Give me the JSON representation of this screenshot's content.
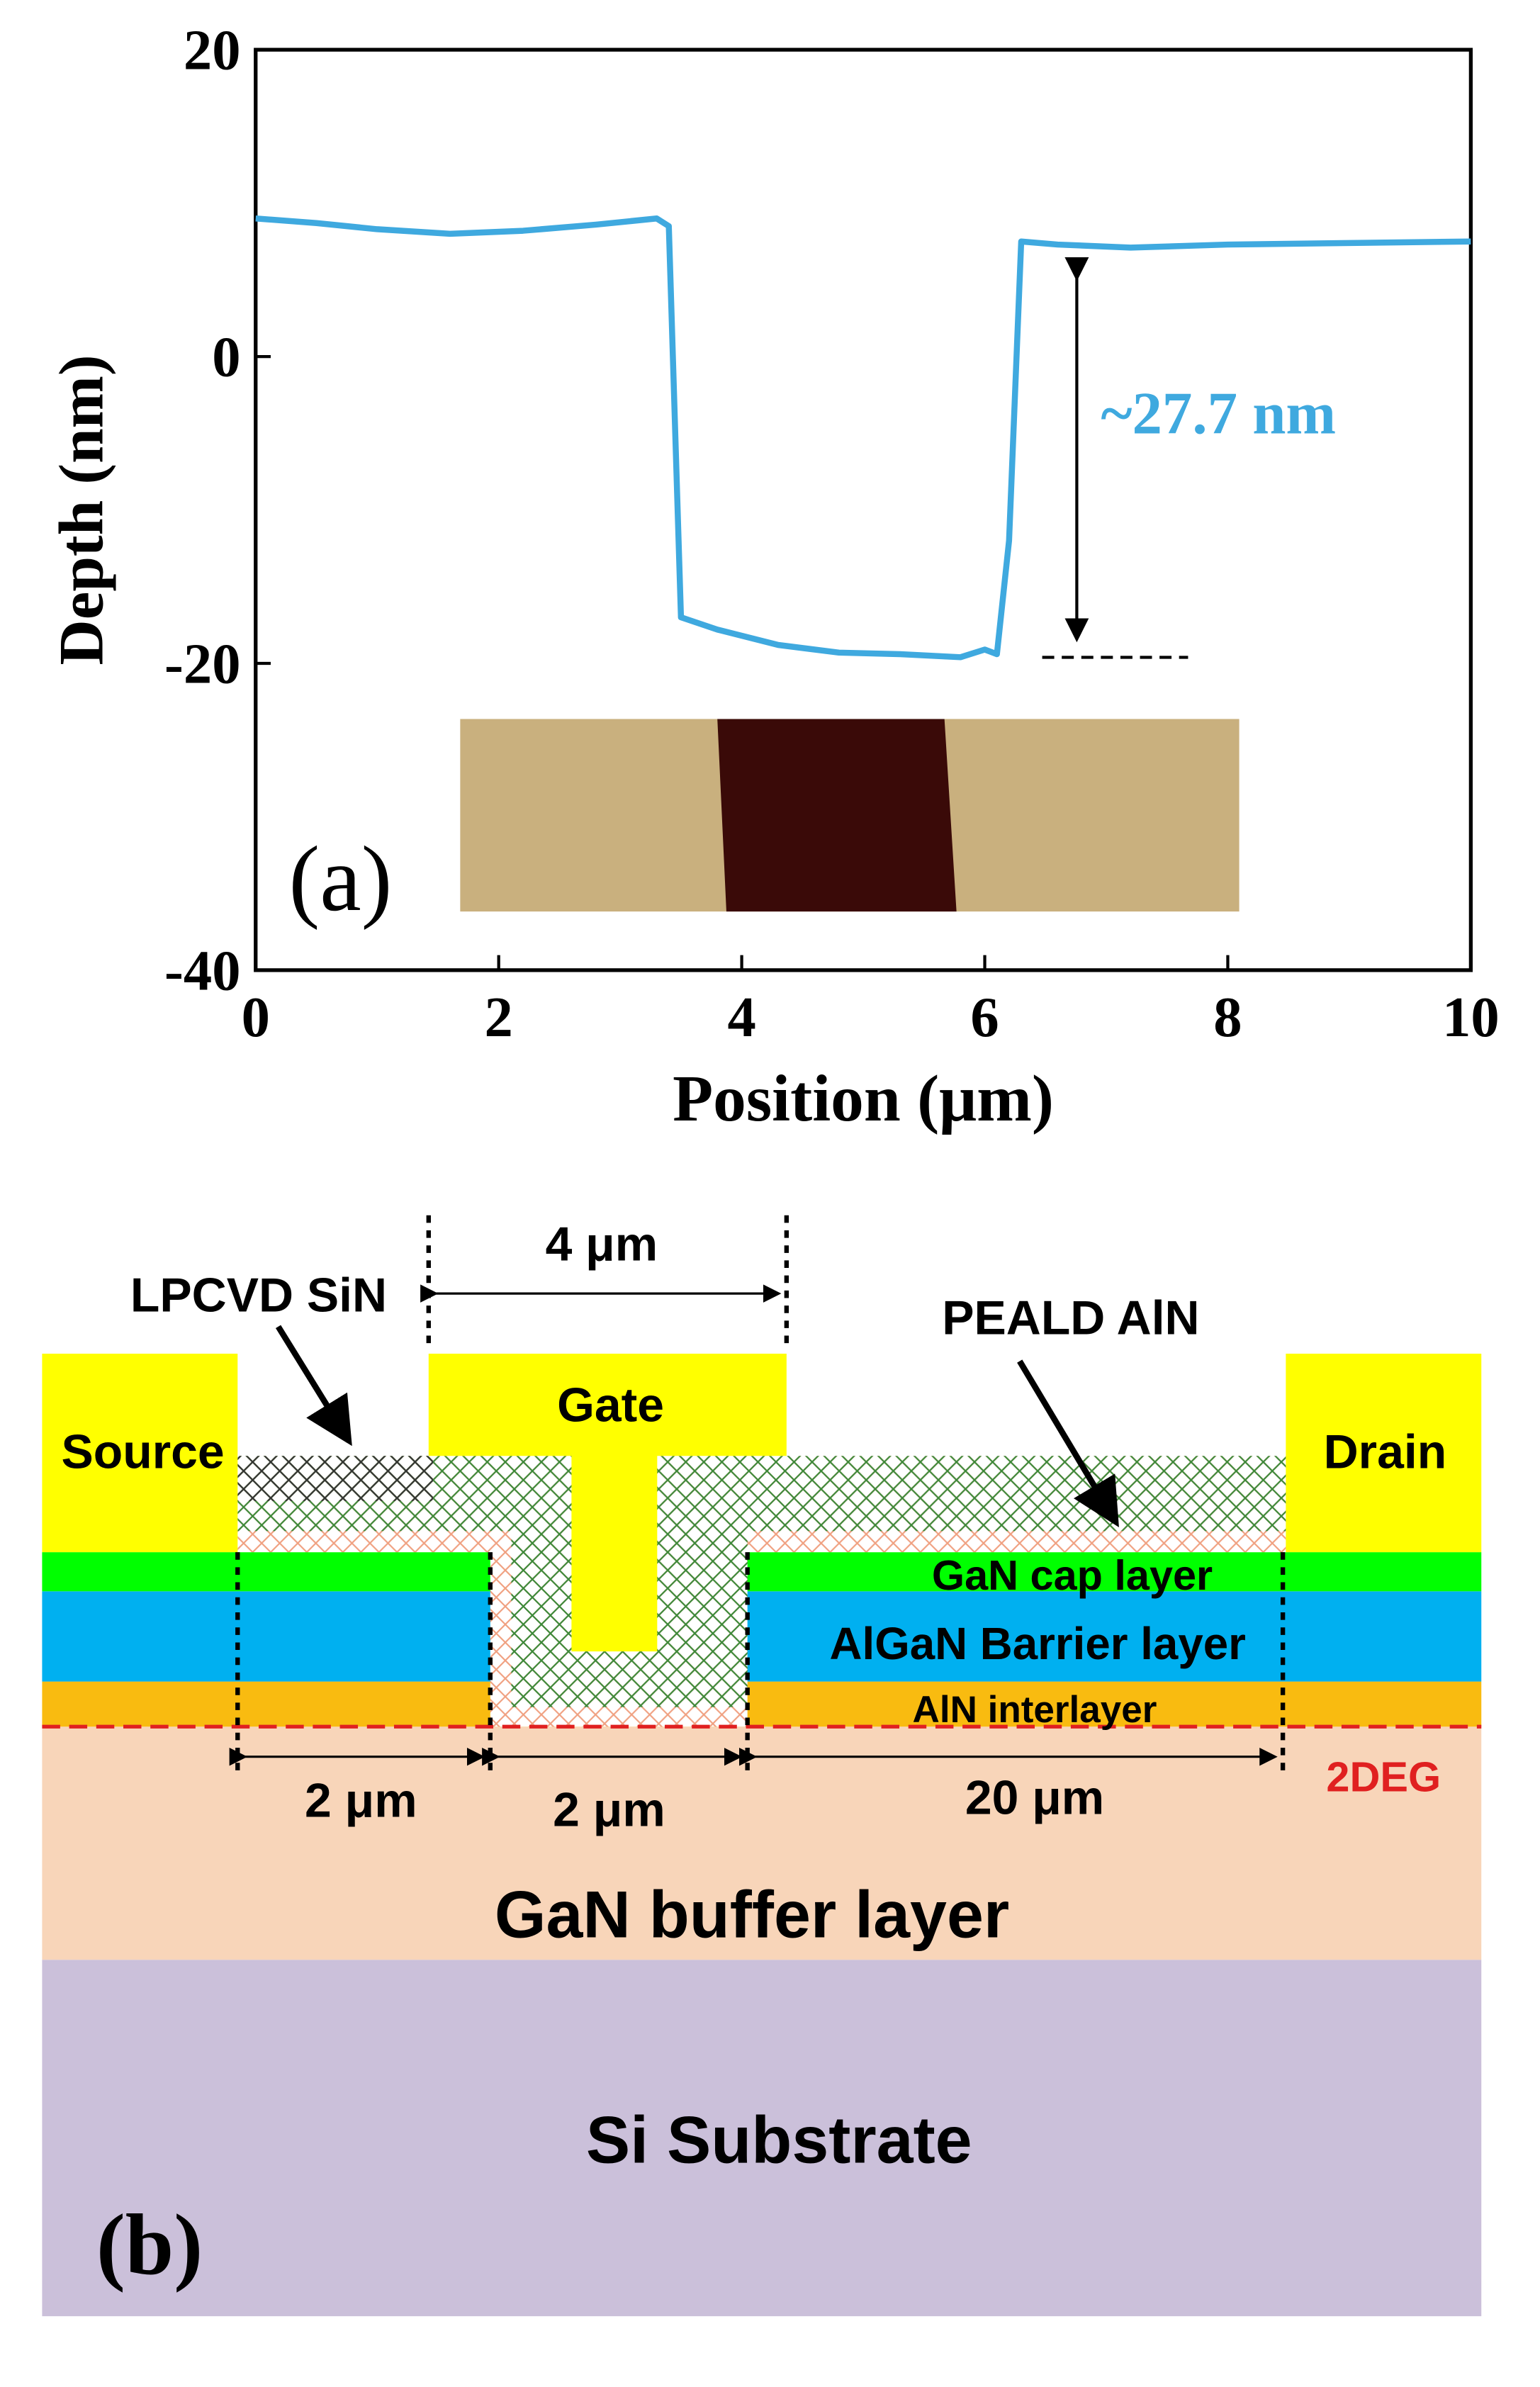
{
  "chart_data": {
    "type": "line",
    "xlabel": "Position (μm)",
    "ylabel": "Depth (nm)",
    "x": [
      0,
      0.5,
      1.0,
      1.6,
      2.2,
      2.8,
      3.3,
      3.4,
      3.5,
      3.8,
      4.3,
      4.8,
      5.3,
      5.8,
      6.0,
      6.1,
      6.2,
      6.3,
      6.6,
      7.2,
      8.0,
      9.0,
      10.0
    ],
    "values": [
      9,
      8.7,
      8.3,
      8,
      8.2,
      8.6,
      9,
      8.5,
      -17,
      -17.8,
      -18.8,
      -19.3,
      -19.4,
      -19.6,
      -19.1,
      -19.4,
      -12,
      7.5,
      7.3,
      7.1,
      7.3,
      7.4,
      7.5
    ],
    "color": "#3fa9df",
    "xlim": [
      0,
      10
    ],
    "ylim": [
      -40,
      20
    ],
    "xticks": [
      0,
      2,
      4,
      6,
      8,
      10
    ],
    "yticks": [
      -40,
      -20,
      0,
      20
    ],
    "annotation": "~27.7 nm",
    "panel_label": "(a)"
  },
  "diagram": {
    "lpcvd": "LPCVD SiN",
    "gate_width": "4 μm",
    "peald": "PEALD AlN",
    "gate": "Gate",
    "source": "Source",
    "drain": "Drain",
    "cap": "GaN cap layer",
    "barrier": "AlGaN Barrier layer",
    "interlayer": "AlN interlayer",
    "twodeg": "2DEG",
    "gap_left": "2 μm",
    "gap_recess": "2 μm",
    "gap_right": "20 μm",
    "buffer": "GaN buffer layer",
    "substrate": "Si Substrate",
    "panel_label": "(b)"
  }
}
